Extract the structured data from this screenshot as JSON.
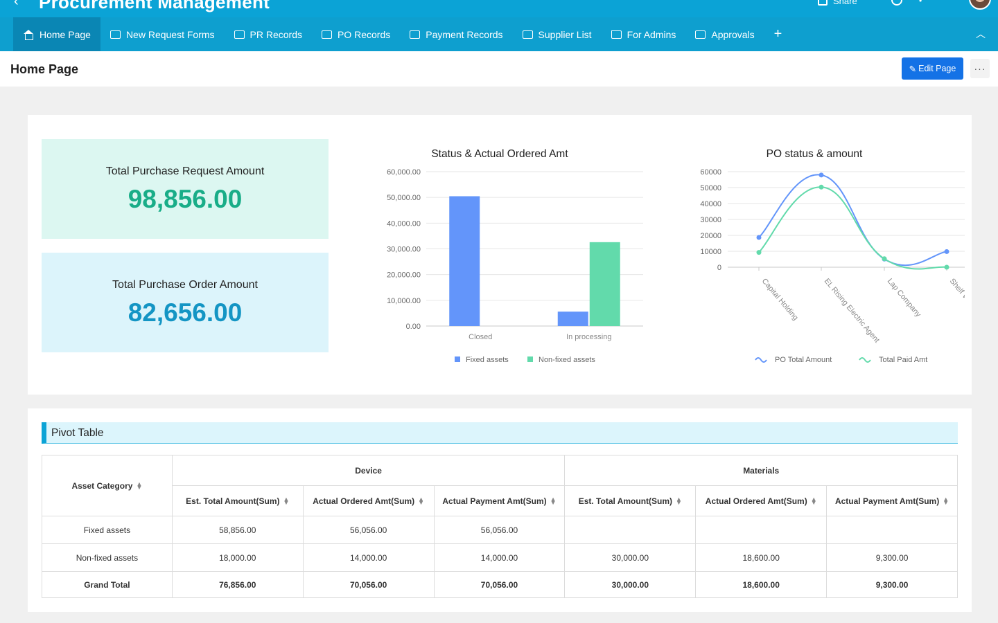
{
  "app": {
    "title": "Procurement Management",
    "share": "Share"
  },
  "nav": {
    "items": [
      {
        "label": "Home Page"
      },
      {
        "label": "New Request Forms"
      },
      {
        "label": "PR Records"
      },
      {
        "label": "PO Records"
      },
      {
        "label": "Payment Records"
      },
      {
        "label": "Supplier List"
      },
      {
        "label": "For Admins"
      },
      {
        "label": "Approvals"
      }
    ]
  },
  "page": {
    "title": "Home Page",
    "edit_label": "Edit Page"
  },
  "kpis": [
    {
      "label": "Total Purchase Request Amount",
      "value": "98,856.00"
    },
    {
      "label": "Total Purchase Order Amount",
      "value": "82,656.00"
    }
  ],
  "chart_data": [
    {
      "type": "bar",
      "title": "Status & Actual Ordered Amt",
      "categories": [
        "Closed",
        "In processing"
      ],
      "series": [
        {
          "name": "Fixed assets",
          "values": [
            50456,
            5600
          ],
          "color": "#6395fa"
        },
        {
          "name": "Non-fixed assets",
          "values": [
            0,
            32600
          ],
          "color": "#62daab"
        }
      ],
      "ylim": [
        0,
        60000
      ],
      "yticks": [
        "0.00",
        "10,000.00",
        "20,000.00",
        "30,000.00",
        "40,000.00",
        "50,000.00",
        "60,000.00"
      ],
      "grid": true,
      "legend": "bottom"
    },
    {
      "type": "line",
      "title": "PO status & amount",
      "categories": [
        "Capital Holding",
        "EL Rising Electric Agent",
        "Lap Company",
        "Shelf Warehouse"
      ],
      "series": [
        {
          "name": "PO Total Amount",
          "values": [
            18700,
            57900,
            5100,
            9800
          ],
          "color": "#6395fa"
        },
        {
          "name": "Total Paid Amt",
          "values": [
            9300,
            50300,
            5300,
            0
          ],
          "color": "#62daab"
        }
      ],
      "ylim": [
        0,
        60000
      ],
      "yticks": [
        "0",
        "10000",
        "20000",
        "30000",
        "40000",
        "50000",
        "60000"
      ],
      "grid": true,
      "legend": "bottom"
    }
  ],
  "pivot": {
    "title": "Pivot Table",
    "row_header": "Asset Category",
    "groups": [
      "Device",
      "Materials"
    ],
    "columns": [
      "Est. Total Amount(Sum)",
      "Actual Ordered Amt(Sum)",
      "Actual Payment Amt(Sum)",
      "Est. Total Amount(Sum)",
      "Actual Ordered Amt(Sum)",
      "Actual Payment Amt(Sum)"
    ],
    "rows": [
      {
        "label": "Fixed assets",
        "cells": [
          "58,856.00",
          "56,056.00",
          "56,056.00",
          "",
          "",
          ""
        ]
      },
      {
        "label": "Non-fixed assets",
        "cells": [
          "18,000.00",
          "14,000.00",
          "14,000.00",
          "30,000.00",
          "18,600.00",
          "9,300.00"
        ]
      },
      {
        "label": "Grand Total",
        "cells": [
          "76,856.00",
          "70,056.00",
          "70,056.00",
          "30,000.00",
          "18,600.00",
          "9,300.00"
        ]
      }
    ]
  }
}
